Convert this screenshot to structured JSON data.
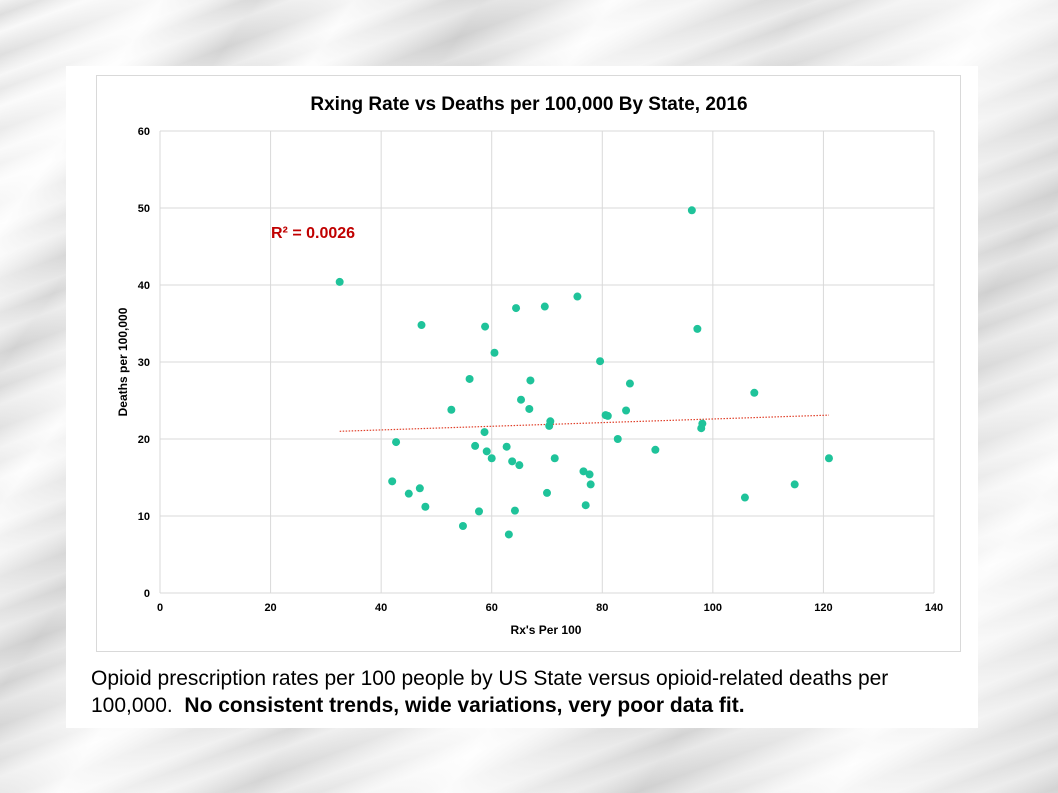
{
  "caption": {
    "text": "Opioid prescription rates per 100 people by US State versus opioid-related deaths per 100,000.",
    "bold_text": "No consistent trends, wide variations, very poor data fit."
  },
  "chart_data": {
    "type": "scatter",
    "title": "Rxing Rate vs Deaths per 100,000 By State, 2016",
    "xlabel": "Rx's Per 100",
    "ylabel": "Deaths per 100,000",
    "xlim": [
      0,
      140
    ],
    "ylim": [
      0,
      60
    ],
    "xticks": [
      0,
      20,
      40,
      60,
      80,
      100,
      120,
      140
    ],
    "yticks": [
      0,
      10,
      20,
      30,
      40,
      50,
      60
    ],
    "grid": true,
    "marker_color": "#1fc39a",
    "trendline_color": "#e0402a",
    "r2_color": "#c00000",
    "r2_label": "R² = 0.0026",
    "trendline": {
      "x": [
        32.5,
        121
      ],
      "y": [
        21.0,
        23.1
      ]
    },
    "points": [
      {
        "x": 32.5,
        "y": 40.4
      },
      {
        "x": 42.0,
        "y": 14.5
      },
      {
        "x": 42.7,
        "y": 19.6
      },
      {
        "x": 45.0,
        "y": 12.9
      },
      {
        "x": 47.0,
        "y": 13.6
      },
      {
        "x": 47.3,
        "y": 34.8
      },
      {
        "x": 48.0,
        "y": 11.2
      },
      {
        "x": 52.7,
        "y": 23.8
      },
      {
        "x": 54.8,
        "y": 8.7
      },
      {
        "x": 56.0,
        "y": 27.8
      },
      {
        "x": 57.0,
        "y": 19.1
      },
      {
        "x": 57.7,
        "y": 10.6
      },
      {
        "x": 58.7,
        "y": 20.9
      },
      {
        "x": 58.8,
        "y": 34.6
      },
      {
        "x": 59.1,
        "y": 18.4
      },
      {
        "x": 60.0,
        "y": 17.5
      },
      {
        "x": 60.5,
        "y": 31.2
      },
      {
        "x": 62.7,
        "y": 19.0
      },
      {
        "x": 63.1,
        "y": 7.6
      },
      {
        "x": 63.7,
        "y": 17.1
      },
      {
        "x": 64.2,
        "y": 10.7
      },
      {
        "x": 64.4,
        "y": 37.0
      },
      {
        "x": 65.0,
        "y": 16.6
      },
      {
        "x": 65.3,
        "y": 25.1
      },
      {
        "x": 66.8,
        "y": 23.9
      },
      {
        "x": 67.0,
        "y": 27.6
      },
      {
        "x": 69.6,
        "y": 37.2
      },
      {
        "x": 70.0,
        "y": 13.0
      },
      {
        "x": 70.4,
        "y": 21.7
      },
      {
        "x": 70.6,
        "y": 22.3
      },
      {
        "x": 71.4,
        "y": 17.5
      },
      {
        "x": 75.5,
        "y": 38.5
      },
      {
        "x": 76.6,
        "y": 15.8
      },
      {
        "x": 77.0,
        "y": 11.4
      },
      {
        "x": 77.7,
        "y": 15.4
      },
      {
        "x": 77.9,
        "y": 14.1
      },
      {
        "x": 79.6,
        "y": 30.1
      },
      {
        "x": 80.6,
        "y": 23.1
      },
      {
        "x": 81.0,
        "y": 23.0
      },
      {
        "x": 82.8,
        "y": 20.0
      },
      {
        "x": 84.3,
        "y": 23.7
      },
      {
        "x": 85.0,
        "y": 27.2
      },
      {
        "x": 89.6,
        "y": 18.6
      },
      {
        "x": 96.2,
        "y": 49.7
      },
      {
        "x": 97.2,
        "y": 34.3
      },
      {
        "x": 97.9,
        "y": 21.4
      },
      {
        "x": 98.1,
        "y": 22.0
      },
      {
        "x": 105.8,
        "y": 12.4
      },
      {
        "x": 107.5,
        "y": 26.0
      },
      {
        "x": 114.8,
        "y": 14.1
      },
      {
        "x": 121.0,
        "y": 17.5
      }
    ]
  }
}
